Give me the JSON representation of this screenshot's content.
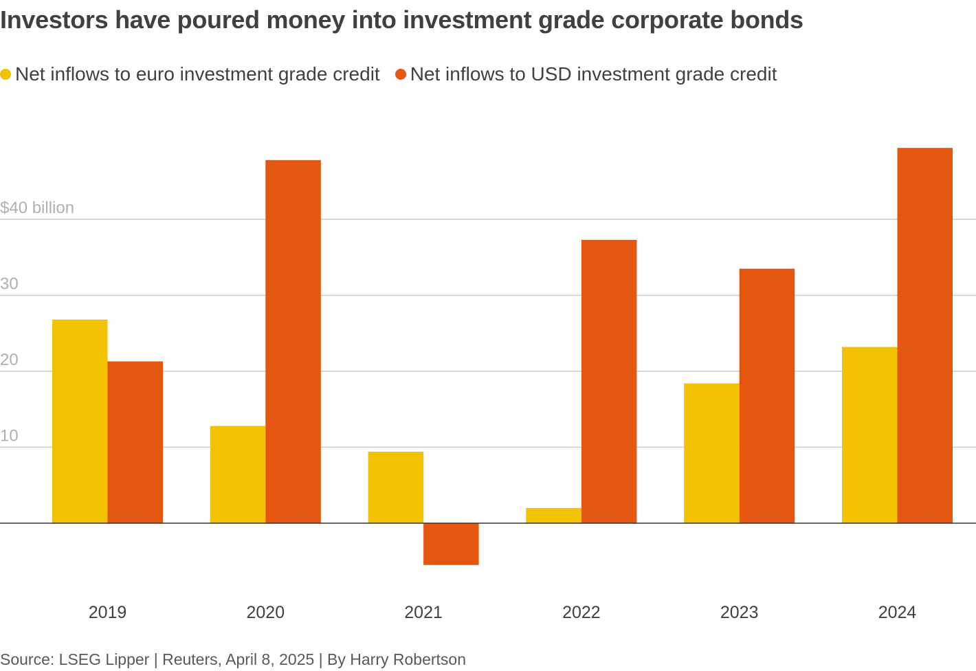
{
  "header": {
    "title": "Investors have poured money into investment grade corporate bonds"
  },
  "legend": [
    {
      "label": "Net inflows to euro investment grade credit",
      "color": "#f2c100"
    },
    {
      "label": "Net inflows to USD investment grade credit",
      "color": "#e55611"
    }
  ],
  "footer": {
    "source": "Source: LSEG Lipper | Reuters, April 8, 2025 | By Harry Robertson"
  },
  "chart_data": {
    "type": "bar",
    "title": "Investors have poured money into investment grade corporate bonds",
    "categories": [
      "2019",
      "2020",
      "2021",
      "2022",
      "2023",
      "2024"
    ],
    "series": [
      {
        "name": "Net inflows to euro investment grade credit",
        "color": "#f2c100",
        "values": [
          26.8,
          12.8,
          9.4,
          2.0,
          18.4,
          23.2
        ]
      },
      {
        "name": "Net inflows to USD investment grade credit",
        "color": "#e55611",
        "values": [
          21.3,
          47.8,
          -5.5,
          37.3,
          33.5,
          49.4
        ]
      }
    ],
    "y_ticks": [
      {
        "value": 10,
        "label": "10"
      },
      {
        "value": 20,
        "label": "20"
      },
      {
        "value": 30,
        "label": "30"
      },
      {
        "value": 40,
        "label": "$40 billion"
      }
    ],
    "ylim": [
      -8,
      54
    ],
    "grid": true,
    "legend_position": "top-left"
  }
}
